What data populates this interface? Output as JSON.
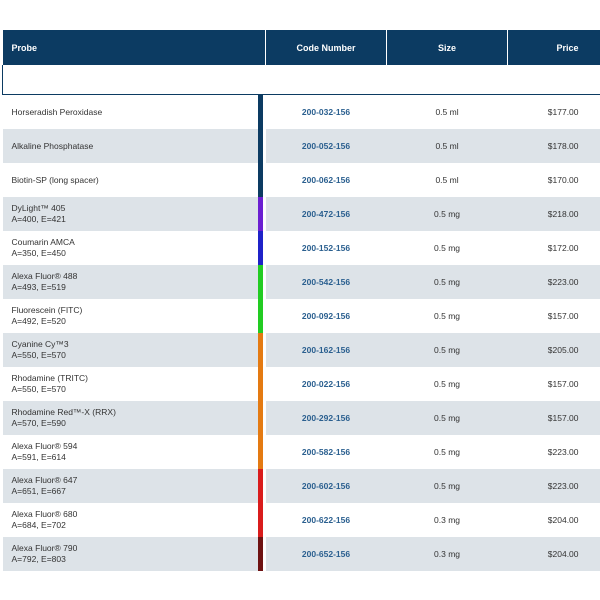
{
  "table": {
    "headers": {
      "probe": "Probe",
      "code": "Code Number",
      "size": "Size",
      "price": "Price"
    },
    "rows": [
      {
        "name": "Horseradish Peroxidase",
        "sub": "",
        "code": "200-032-156",
        "size": "0.5 ml",
        "price": "$177.00",
        "color": "#0c3b62"
      },
      {
        "name": "Alkaline Phosphatase",
        "sub": "",
        "code": "200-052-156",
        "size": "0.5 ml",
        "price": "$178.00",
        "color": "#0c3b62"
      },
      {
        "name": "Biotin-SP (long spacer)",
        "sub": "",
        "code": "200-062-156",
        "size": "0.5 ml",
        "price": "$170.00",
        "color": "#0c3b62"
      },
      {
        "name": "DyLight™ 405",
        "sub": "A=400, E=421",
        "code": "200-472-156",
        "size": "0.5 mg",
        "price": "$218.00",
        "color": "#6b1fd1"
      },
      {
        "name": "Coumarin AMCA",
        "sub": "A=350, E=450",
        "code": "200-152-156",
        "size": "0.5 mg",
        "price": "$172.00",
        "color": "#1f22c8"
      },
      {
        "name": "Alexa Fluor® 488",
        "sub": "A=493, E=519",
        "code": "200-542-156",
        "size": "0.5 mg",
        "price": "$223.00",
        "color": "#22cc22"
      },
      {
        "name": "Fluorescein (FITC)",
        "sub": "A=492, E=520",
        "code": "200-092-156",
        "size": "0.5 mg",
        "price": "$157.00",
        "color": "#22cc22"
      },
      {
        "name": "Cyanine Cy™3",
        "sub": "A=550, E=570",
        "code": "200-162-156",
        "size": "0.5 mg",
        "price": "$205.00",
        "color": "#e47a12"
      },
      {
        "name": "Rhodamine (TRITC)",
        "sub": "A=550, E=570",
        "code": "200-022-156",
        "size": "0.5 mg",
        "price": "$157.00",
        "color": "#e47a12"
      },
      {
        "name": "Rhodamine Red™-X (RRX)",
        "sub": "A=570, E=590",
        "code": "200-292-156",
        "size": "0.5 mg",
        "price": "$157.00",
        "color": "#e47a12"
      },
      {
        "name": "Alexa Fluor® 594",
        "sub": "A=591, E=614",
        "code": "200-582-156",
        "size": "0.5 mg",
        "price": "$223.00",
        "color": "#e47a12"
      },
      {
        "name": "Alexa Fluor® 647",
        "sub": "A=651, E=667",
        "code": "200-602-156",
        "size": "0.5 mg",
        "price": "$223.00",
        "color": "#d91c1c"
      },
      {
        "name": "Alexa Fluor® 680",
        "sub": "A=684, E=702",
        "code": "200-622-156",
        "size": "0.3 mg",
        "price": "$204.00",
        "color": "#d91c1c"
      },
      {
        "name": "Alexa Fluor® 790",
        "sub": "A=792, E=803",
        "code": "200-652-156",
        "size": "0.3 mg",
        "price": "$204.00",
        "color": "#6e1212"
      }
    ]
  }
}
